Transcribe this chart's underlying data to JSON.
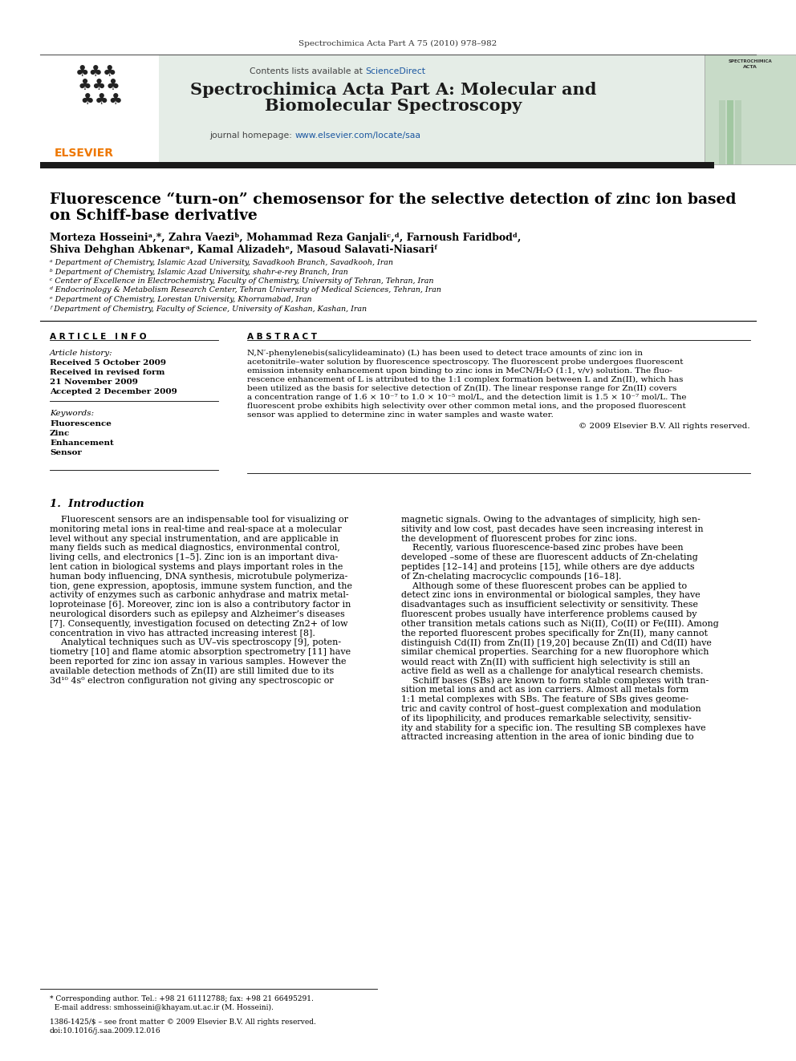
{
  "page_title": "Spectrochimica Acta Part A 75 (2010) 978–982",
  "journal_name_l1": "Spectrochimica Acta Part A: Molecular and",
  "journal_name_l2": "Biomolecular Spectroscopy",
  "contents_line": "Contents lists available at ",
  "contents_link": "ScienceDirect",
  "homepage_label": "journal homepage: ",
  "homepage_url": "www.elsevier.com/locate/saa",
  "article_title_l1": "Fluorescence “turn-on” chemosensor for the selective detection of zinc ion based",
  "article_title_l2": "on Schiff-base derivative",
  "author_line1": "Morteza Hosseiniᵃ,*, Zahra Vaeziᵇ, Mohammad Reza Ganjaliᶜ,ᵈ, Farnoush Faridbodᵈ,",
  "author_line2": "Shiva Dehghan Abkenarᵃ, Kamal Alizadehᵉ, Masoud Salavati-Niasariᶠ",
  "affiliations": [
    "ᵃ Department of Chemistry, Islamic Azad University, Savadkooh Branch, Savadkooh, Iran",
    "ᵇ Department of Chemistry, Islamic Azad University, shahr-e-rey Branch, Iran",
    "ᶜ Center of Excellence in Electrochemistry, Faculty of Chemistry, University of Tehran, Tehran, Iran",
    "ᵈ Endocrinology & Metabolism Research Center, Tehran University of Medical Sciences, Tehran, Iran",
    "ᵉ Department of Chemistry, Lorestan University, Khorramabad, Iran",
    "ᶠ Department of Chemistry, Faculty of Science, University of Kashan, Kashan, Iran"
  ],
  "article_info_header": "A R T I C L E   I N F O",
  "abstract_header": "A B S T R A C T",
  "article_history_label": "Article history:",
  "received_1": "Received 5 October 2009",
  "received_revised": "Received in revised form",
  "date_revised": "21 November 2009",
  "accepted": "Accepted 2 December 2009",
  "keywords_label": "Keywords:",
  "keywords": [
    "Fluorescence",
    "Zinc",
    "Enhancement",
    "Sensor"
  ],
  "abstract_lines": [
    "N,N′-phenylenebis(salicylideaminato) (L) has been used to detect trace amounts of zinc ion in",
    "acetonitrile–water solution by fluorescence spectroscopy. The fluorescent probe undergoes fluorescent",
    "emission intensity enhancement upon binding to zinc ions in MeCN/H₂O (1:1, v/v) solution. The fluo-",
    "rescence enhancement of L is attributed to the 1:1 complex formation between L and Zn(II), which has",
    "been utilized as the basis for selective detection of Zn(II). The linear response range for Zn(II) covers",
    "a concentration range of 1.6 × 10⁻⁷ to 1.0 × 10⁻⁵ mol/L, and the detection limit is 1.5 × 10⁻⁷ mol/L. The",
    "fluorescent probe exhibits high selectivity over other common metal ions, and the proposed fluorescent",
    "sensor was applied to determine zinc in water samples and waste water."
  ],
  "copyright": "© 2009 Elsevier B.V. All rights reserved.",
  "intro_header": "1.  Introduction",
  "intro_col1_lines": [
    "    Fluorescent sensors are an indispensable tool for visualizing or",
    "monitoring metal ions in real-time and real-space at a molecular",
    "level without any special instrumentation, and are applicable in",
    "many fields such as medical diagnostics, environmental control,",
    "living cells, and electronics [1–5]. Zinc ion is an important diva-",
    "lent cation in biological systems and plays important roles in the",
    "human body influencing, DNA synthesis, microtubule polymeriza-",
    "tion, gene expression, apoptosis, immune system function, and the",
    "activity of enzymes such as carbonic anhydrase and matrix metal-",
    "loproteinase [6]. Moreover, zinc ion is also a contributory factor in",
    "neurological disorders such as epilepsy and Alzheimer’s diseases",
    "[7]. Consequently, investigation focused on detecting Zn2+ of low",
    "concentration in vivo has attracted increasing interest [8].",
    "    Analytical techniques such as UV–vis spectroscopy [9], poten-",
    "tiometry [10] and flame atomic absorption spectrometry [11] have",
    "been reported for zinc ion assay in various samples. However the",
    "available detection methods of Zn(II) are still limited due to its",
    "3d¹⁰ 4s⁰ electron configuration not giving any spectroscopic or"
  ],
  "intro_col2_lines": [
    "magnetic signals. Owing to the advantages of simplicity, high sen-",
    "sitivity and low cost, past decades have seen increasing interest in",
    "the development of fluorescent probes for zinc ions.",
    "    Recently, various fluorescence-based zinc probes have been",
    "developed –some of these are fluorescent adducts of Zn-chelating",
    "peptides [12–14] and proteins [15], while others are dye adducts",
    "of Zn-chelating macrocyclic compounds [16–18].",
    "    Although some of these fluorescent probes can be applied to",
    "detect zinc ions in environmental or biological samples, they have",
    "disadvantages such as insufficient selectivity or sensitivity. These",
    "fluorescent probes usually have interference problems caused by",
    "other transition metals cations such as Ni(II), Co(II) or Fe(III). Among",
    "the reported fluorescent probes specifically for Zn(II), many cannot",
    "distinguish Cd(II) from Zn(II) [19,20] because Zn(II) and Cd(II) have",
    "similar chemical properties. Searching for a new fluorophore which",
    "would react with Zn(II) with sufficient high selectivity is still an",
    "active field as well as a challenge for analytical research chemists.",
    "    Schiff bases (SBs) are known to form stable complexes with tran-",
    "sition metal ions and act as ion carriers. Almost all metals form",
    "1:1 metal complexes with SBs. The feature of SBs gives geome-",
    "tric and cavity control of host–guest complexation and modulation",
    "of its lipophilicity, and produces remarkable selectivity, sensitiv-",
    "ity and stability for a specific ion. The resulting SB complexes have",
    "attracted increasing attention in the area of ionic binding due to"
  ],
  "footer_line1": "* Corresponding author. Tel.: +98 21 61112788; fax: +98 21 66495291.",
  "footer_line2": "  E-mail address: smhosseini@khayam.ut.ac.ir (M. Hosseini).",
  "footer_issn1": "1386-1425/$ – see front matter © 2009 Elsevier B.V. All rights reserved.",
  "footer_issn2": "doi:10.1016/j.saa.2009.12.016",
  "bg_color": "#ffffff",
  "header_bg": "#e5ede7",
  "black_bar_color": "#1a1a1a",
  "text_color": "#000000",
  "blue_color": "#1a56a0",
  "elsevier_orange": "#ee7700",
  "header_text_color": "#1a1a1a"
}
